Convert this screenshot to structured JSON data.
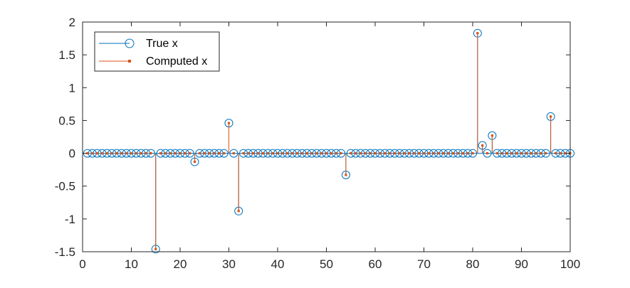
{
  "chart_data": {
    "type": "stem",
    "title": "",
    "xlabel": "",
    "ylabel": "",
    "xlim": [
      0,
      100
    ],
    "ylim": [
      -1.5,
      2
    ],
    "x_ticks": [
      0,
      10,
      20,
      30,
      40,
      50,
      60,
      70,
      80,
      90,
      100
    ],
    "y_ticks": [
      -1.5,
      -1,
      -0.5,
      0,
      0.5,
      1,
      1.5,
      2
    ],
    "x_tick_labels": [
      "0",
      "10",
      "20",
      "30",
      "40",
      "50",
      "60",
      "70",
      "80",
      "90",
      "100"
    ],
    "y_tick_labels": [
      "-1.5",
      "-1",
      "-0.5",
      "0",
      "0.5",
      "1",
      "1.5",
      "2"
    ],
    "grid": false,
    "legend_position": "top-left",
    "x": [
      1,
      2,
      3,
      4,
      5,
      6,
      7,
      8,
      9,
      10,
      11,
      12,
      13,
      14,
      15,
      16,
      17,
      18,
      19,
      20,
      21,
      22,
      23,
      24,
      25,
      26,
      27,
      28,
      29,
      30,
      31,
      32,
      33,
      34,
      35,
      36,
      37,
      38,
      39,
      40,
      41,
      42,
      43,
      44,
      45,
      46,
      47,
      48,
      49,
      50,
      51,
      52,
      53,
      54,
      55,
      56,
      57,
      58,
      59,
      60,
      61,
      62,
      63,
      64,
      65,
      66,
      67,
      68,
      69,
      70,
      71,
      72,
      73,
      74,
      75,
      76,
      77,
      78,
      79,
      80,
      81,
      82,
      83,
      84,
      85,
      86,
      87,
      88,
      89,
      90,
      91,
      92,
      93,
      94,
      95,
      96,
      97,
      98,
      99,
      100
    ],
    "series": [
      {
        "name": "True x",
        "color": "#0072BD",
        "marker": "circle",
        "values": [
          0,
          0,
          0,
          0,
          0,
          0,
          0,
          0,
          0,
          0,
          0,
          0,
          0,
          0,
          -1.46,
          0,
          0,
          0,
          0,
          0,
          0,
          0,
          -0.13,
          0,
          0,
          0,
          0,
          0,
          0,
          0.46,
          0,
          -0.88,
          0,
          0,
          0,
          0,
          0,
          0,
          0,
          0,
          0,
          0,
          0,
          0,
          0,
          0,
          0,
          0,
          0,
          0,
          0,
          0,
          0,
          -0.33,
          0,
          0,
          0,
          0,
          0,
          0,
          0,
          0,
          0,
          0,
          0,
          0,
          0,
          0,
          0,
          0,
          0,
          0,
          0,
          0,
          0,
          0,
          0,
          0,
          0,
          0,
          1.83,
          0.12,
          0,
          0.27,
          0,
          0,
          0,
          0,
          0,
          0,
          0,
          0,
          0,
          0,
          0,
          0.56,
          0,
          0,
          0,
          0
        ]
      },
      {
        "name": "Computed x",
        "color": "#D95319",
        "marker": "point",
        "values": [
          0,
          0,
          0,
          0,
          0,
          0,
          0,
          0,
          0,
          0,
          0,
          0,
          0,
          0,
          -1.46,
          0,
          0,
          0,
          0,
          0,
          0,
          0,
          -0.13,
          0,
          0,
          0,
          0,
          0,
          0,
          0.46,
          0,
          -0.88,
          0,
          0,
          0,
          0,
          0,
          0,
          0,
          0,
          0,
          0,
          0,
          0,
          0,
          0,
          0,
          0,
          0,
          0,
          0,
          0,
          0,
          -0.33,
          0,
          0,
          0,
          0,
          0,
          0,
          0,
          0,
          0,
          0,
          0,
          0,
          0,
          0,
          0,
          0,
          0,
          0,
          0,
          0,
          0,
          0,
          0,
          0,
          0,
          0,
          1.83,
          0.12,
          0,
          0.27,
          0,
          0,
          0,
          0,
          0,
          0,
          0,
          0,
          0,
          0,
          0,
          0.56,
          0,
          0,
          0,
          0
        ]
      }
    ]
  },
  "colors": {
    "axis": "#262626",
    "legend_border": "#262626",
    "background": "#ffffff"
  }
}
